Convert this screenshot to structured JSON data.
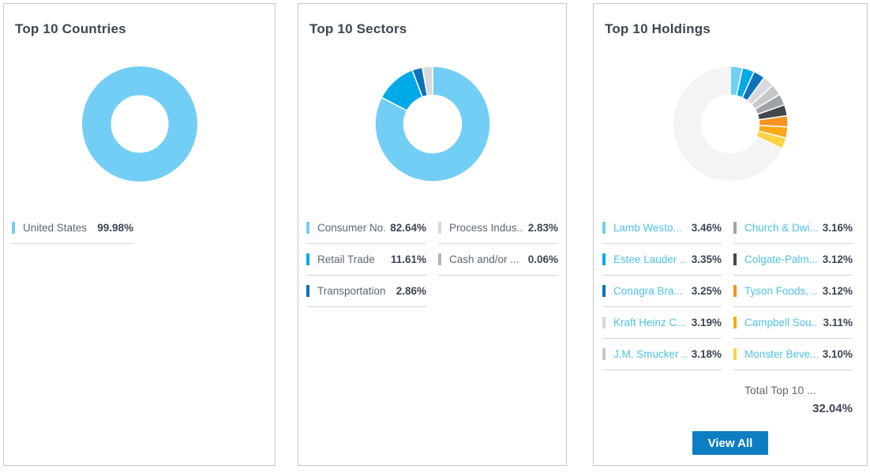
{
  "colors": {
    "accent_light_blue": "#72CEF5",
    "accent_cyan": "#00A9E8",
    "accent_dark_blue": "#0D72BA",
    "link_blue": "#4EC1E9",
    "button_blue": "#0E7EC3",
    "remainder_gray": "#F4F4F5",
    "divider_gray": "#D6D6D6"
  },
  "cards": [
    {
      "title": "Top 10 Countries",
      "legend": {
        "left": [
          {
            "label": "United States",
            "value": "99.98%",
            "color": "#72CEF5",
            "link": false
          }
        ],
        "right": []
      }
    },
    {
      "title": "Top 10 Sectors",
      "legend": {
        "left": [
          {
            "label": "Consumer No...",
            "value": "82.64%",
            "color": "#72CEF5",
            "link": false
          },
          {
            "label": "Retail Trade",
            "value": "11.61%",
            "color": "#00A9E8",
            "link": false
          },
          {
            "label": "Transportation",
            "value": "2.86%",
            "color": "#0D72BA",
            "link": false
          }
        ],
        "right": [
          {
            "label": "Process Indus...",
            "value": "2.83%",
            "color": "#D7D9DB",
            "link": false
          },
          {
            "label": "Cash and/or ...",
            "value": "0.06%",
            "color": "#B3B6B9",
            "link": false
          }
        ]
      }
    },
    {
      "title": "Top 10 Holdings",
      "legend": {
        "left": [
          {
            "label": "Lamb Westo...",
            "value": "3.46%",
            "color": "#72CEF5",
            "link": true
          },
          {
            "label": "Estee Lauder ...",
            "value": "3.35%",
            "color": "#00A9E8",
            "link": true
          },
          {
            "label": "Conagra Bra...",
            "value": "3.25%",
            "color": "#0D72BA",
            "link": true
          },
          {
            "label": "Kraft Heinz C...",
            "value": "3.19%",
            "color": "#D7D9DB",
            "link": true
          },
          {
            "label": "J.M. Smucker ...",
            "value": "3.18%",
            "color": "#C5C8CA",
            "link": true
          }
        ],
        "right": [
          {
            "label": "Church & Dwi...",
            "value": "3.16%",
            "color": "#9FA3A7",
            "link": true
          },
          {
            "label": "Colgate-Palm...",
            "value": "3.12%",
            "color": "#43474B",
            "link": true
          },
          {
            "label": "Tyson Foods, ...",
            "value": "3.12%",
            "color": "#F7941E",
            "link": true
          },
          {
            "label": "Campbell Sou...",
            "value": "3.11%",
            "color": "#FBA919",
            "link": true
          },
          {
            "label": "Monster Beve...",
            "value": "3.10%",
            "color": "#FBD343",
            "link": true
          }
        ]
      },
      "total_label": "Total Top 10 ...",
      "total_value": "32.04%",
      "view_all_label": "View All"
    }
  ],
  "chart_data": [
    {
      "type": "pie",
      "subtype": "donut",
      "title": "Top 10 Countries",
      "labels": [
        "United States"
      ],
      "values": [
        99.98
      ],
      "colors": [
        "#72CEF5"
      ],
      "legend_position": "bottom-left"
    },
    {
      "type": "pie",
      "subtype": "donut",
      "title": "Top 10 Sectors",
      "labels": [
        "Consumer No...",
        "Retail Trade",
        "Transportation",
        "Process Indus...",
        "Cash and/or ..."
      ],
      "values": [
        82.64,
        11.61,
        2.86,
        2.83,
        0.06
      ],
      "colors": [
        "#72CEF5",
        "#00A9E8",
        "#0D72BA",
        "#D7D9DB",
        "#B3B6B9"
      ],
      "legend_position": "bottom-two-columns"
    },
    {
      "type": "pie",
      "subtype": "donut",
      "title": "Top 10 Holdings",
      "labels": [
        "Lamb Westo...",
        "Estee Lauder ...",
        "Conagra Bra...",
        "Kraft Heinz C...",
        "J.M. Smucker ...",
        "Church & Dwi...",
        "Colgate-Palm...",
        "Tyson Foods, ...",
        "Campbell Sou...",
        "Monster Beve..."
      ],
      "values": [
        3.46,
        3.35,
        3.25,
        3.19,
        3.18,
        3.16,
        3.12,
        3.12,
        3.11,
        3.1
      ],
      "colors": [
        "#72CEF5",
        "#00A9E8",
        "#0D72BA",
        "#D7D9DB",
        "#C5C8CA",
        "#9FA3A7",
        "#43474B",
        "#F7941E",
        "#FBA919",
        "#FBD343"
      ],
      "remainder_value": 67.96,
      "remainder_color": "#F4F4F5",
      "total_label": "Total Top 10 ...",
      "total_value": 32.04,
      "legend_position": "bottom-two-columns"
    }
  ]
}
